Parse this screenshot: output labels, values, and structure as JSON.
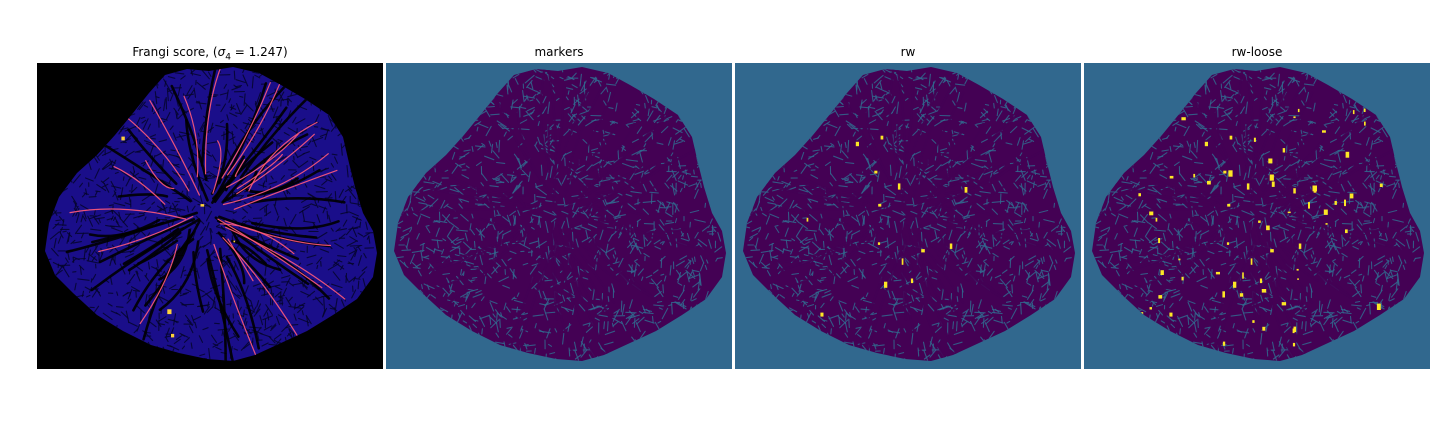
{
  "panels": [
    {
      "title_prefix": "Frangi score, (",
      "sigma": "σ",
      "sigma_sub": "4",
      "title_suffix": " = 1.247)"
    },
    {
      "title": "markers"
    },
    {
      "title": "rw"
    },
    {
      "title": "rw-loose"
    }
  ],
  "colors": {
    "frangi_background": "#000000",
    "frangi_tissue": "#1a0e8a",
    "frangi_vessel_hot": "#ff5a7a",
    "frangi_vessel_bright": "#ffd23a",
    "label_background": "#31688e",
    "label_dark": "#440154",
    "label_mid": "#31688e",
    "label_bright": "#fde725"
  }
}
